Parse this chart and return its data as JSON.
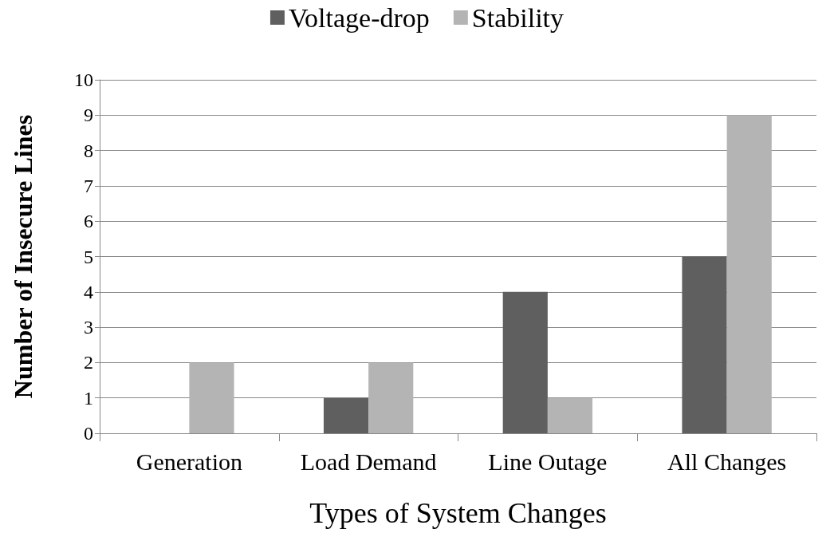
{
  "chart_data": {
    "type": "bar",
    "xlabel": "Types of System Changes",
    "ylabel": "Number of Insecure Lines",
    "categories": [
      "Generation",
      "Load Demand",
      "Line Outage",
      "All Changes"
    ],
    "series": [
      {
        "name": "Voltage-drop",
        "color": "#5f5f5f",
        "values": [
          0,
          1,
          4,
          5
        ]
      },
      {
        "name": "Stability",
        "color": "#b4b4b4",
        "values": [
          2,
          2,
          1,
          9
        ]
      }
    ],
    "ylim": [
      0,
      10
    ],
    "yticks": [
      0,
      1,
      2,
      3,
      4,
      5,
      6,
      7,
      8,
      9,
      10
    ],
    "grid": "y",
    "legend": "top"
  }
}
